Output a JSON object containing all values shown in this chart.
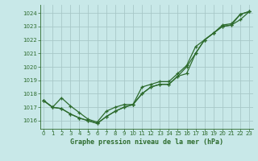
{
  "background_color": "#c8e8e8",
  "grid_color": "#a8c8c8",
  "line_color": "#2d6b2d",
  "xlabel": "Graphe pression niveau de la mer (hPa)",
  "xlim": [
    -0.4,
    23.4
  ],
  "ylim": [
    1015.4,
    1024.6
  ],
  "yticks": [
    1016,
    1017,
    1018,
    1019,
    1020,
    1021,
    1022,
    1023,
    1024
  ],
  "xticks": [
    0,
    1,
    2,
    3,
    4,
    5,
    6,
    7,
    8,
    9,
    10,
    11,
    12,
    13,
    14,
    15,
    16,
    17,
    18,
    19,
    20,
    21,
    22,
    23
  ],
  "series": [
    [
      1017.5,
      1017.0,
      1016.9,
      1016.5,
      1016.2,
      1016.0,
      1015.8,
      1016.3,
      1016.7,
      1017.0,
      1017.2,
      1018.0,
      1018.5,
      1018.7,
      1018.7,
      1019.3,
      1019.5,
      1021.0,
      1022.0,
      1022.5,
      1023.0,
      1023.1,
      1023.9,
      1024.1
    ],
    [
      1017.5,
      1017.0,
      1016.9,
      1016.5,
      1016.2,
      1016.0,
      1015.8,
      1016.3,
      1016.7,
      1017.0,
      1017.2,
      1018.0,
      1018.5,
      1018.7,
      1018.7,
      1019.3,
      1020.0,
      1021.0,
      1022.0,
      1022.5,
      1023.0,
      1023.1,
      1023.5,
      1024.1
    ],
    [
      1017.5,
      1017.0,
      1017.7,
      1017.1,
      1016.6,
      1016.1,
      1015.9,
      1016.7,
      1017.0,
      1017.2,
      1017.2,
      1018.5,
      1018.7,
      1018.9,
      1018.9,
      1019.5,
      1020.1,
      1021.5,
      1022.0,
      1022.5,
      1023.1,
      1023.2,
      1023.9,
      1024.1
    ]
  ]
}
